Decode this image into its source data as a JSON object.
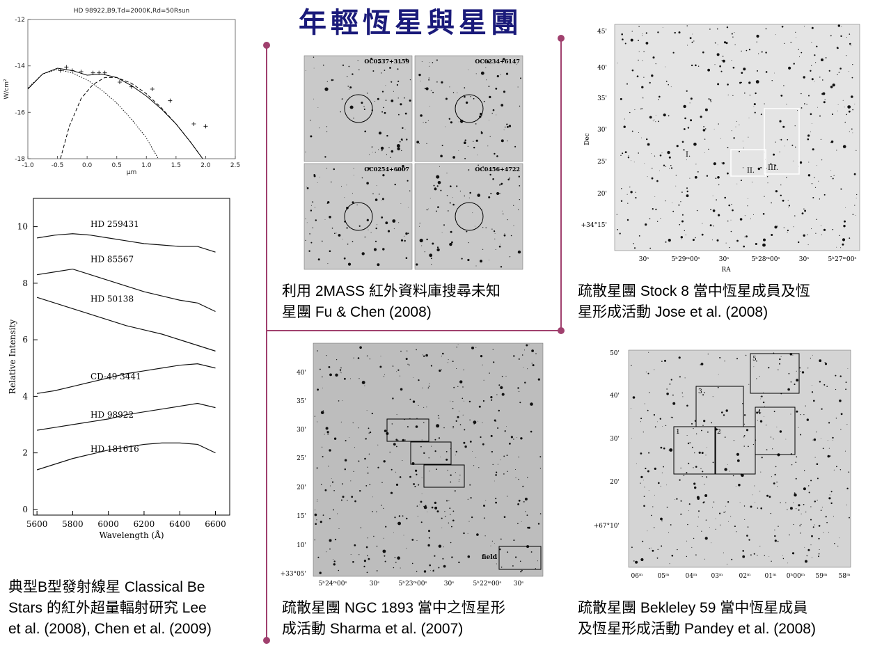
{
  "header": {
    "title": "年輕恆星與星團"
  },
  "sed": {
    "title": "HD 98922,B9,Td=2000K,Rd=50Rsun",
    "xlabel": "μm",
    "ylabel": "W/cm²",
    "xlim": [
      -1,
      2.5
    ],
    "ylim": [
      -18,
      -12
    ],
    "xticks": [
      {
        "value": -1,
        "label": "-1.0"
      },
      {
        "value": -0.5,
        "label": "-0.5"
      },
      {
        "value": 0,
        "label": "0.0"
      },
      {
        "value": 0.5,
        "label": "0.5"
      },
      {
        "value": 1,
        "label": "1.0"
      },
      {
        "value": 1.5,
        "label": "1.5"
      },
      {
        "value": 2,
        "label": "2.0"
      },
      {
        "value": 2.5,
        "label": "2.5"
      }
    ],
    "yticks": [
      -12,
      -14,
      -16,
      -18
    ],
    "points": {
      "x": [
        -0.45,
        -0.35,
        -0.25,
        -0.1,
        0.1,
        0.2,
        0.3,
        0.55,
        0.75,
        1.1,
        1.4,
        1.8,
        2.0
      ],
      "y": [
        -14.2,
        -14.05,
        -14.2,
        -14.25,
        -14.3,
        -14.3,
        -14.3,
        -14.7,
        -14.9,
        -15.0,
        -15.5,
        -16.5,
        -16.6
      ]
    },
    "curves": [
      {
        "style": "solid",
        "x": [
          -1,
          -0.75,
          -0.5,
          -0.25,
          0,
          0.25,
          0.5,
          0.75,
          1,
          1.25,
          1.5,
          1.75,
          1.95
        ],
        "y": [
          -15,
          -14.35,
          -14.1,
          -14.2,
          -14.4,
          -14.35,
          -14.5,
          -14.85,
          -15.3,
          -15.85,
          -16.5,
          -17.3,
          -18
        ]
      },
      {
        "style": "dotted",
        "x": [
          -1,
          -0.75,
          -0.5,
          -0.25,
          0,
          0.25,
          0.5,
          0.75,
          1,
          1.2
        ],
        "y": [
          -14.95,
          -14.35,
          -14.15,
          -14.3,
          -14.6,
          -15.05,
          -15.6,
          -16.3,
          -17.1,
          -18
        ]
      },
      {
        "style": "dashed",
        "x": [
          -0.45,
          -0.3,
          -0.1,
          0.1,
          0.3,
          0.5,
          0.75,
          1,
          1.25,
          1.5,
          1.75,
          1.95
        ],
        "y": [
          -18,
          -16.6,
          -15.4,
          -14.8,
          -14.5,
          -14.5,
          -14.75,
          -15.2,
          -15.8,
          -16.5,
          -17.3,
          -18
        ]
      }
    ]
  },
  "spectra": {
    "xlabel": "Wavelength (Å)",
    "ylabel": "Relative Intensity",
    "xlim": [
      5580,
      6680
    ],
    "ylim": [
      -0.2,
      11
    ],
    "xticks": [
      5600,
      5800,
      6000,
      6200,
      6400,
      6600
    ],
    "yticks": [
      0,
      2,
      4,
      6,
      8,
      10
    ],
    "x": [
      5600,
      5700,
      5800,
      5900,
      6000,
      6100,
      6200,
      6300,
      6400,
      6500,
      6600
    ],
    "series": [
      {
        "name": "HD 259431",
        "values": [
          9.6,
          9.7,
          9.75,
          9.7,
          9.6,
          9.5,
          9.4,
          9.35,
          9.3,
          9.3,
          9.1
        ]
      },
      {
        "name": "HD 85567",
        "values": [
          8.3,
          8.4,
          8.5,
          8.3,
          8.1,
          7.9,
          7.7,
          7.55,
          7.4,
          7.3,
          7.0
        ]
      },
      {
        "name": "HD 50138",
        "values": [
          7.5,
          7.3,
          7.1,
          6.9,
          6.7,
          6.5,
          6.35,
          6.2,
          6.0,
          5.8,
          5.6
        ]
      },
      {
        "name": "CD-49 3441",
        "values": [
          4.1,
          4.2,
          4.35,
          4.5,
          4.65,
          4.8,
          4.9,
          5.0,
          5.1,
          5.15,
          5.0
        ]
      },
      {
        "name": "HD 98922",
        "values": [
          2.8,
          2.9,
          3.0,
          3.1,
          3.2,
          3.35,
          3.45,
          3.55,
          3.65,
          3.75,
          3.6
        ]
      },
      {
        "name": "HD 181616",
        "values": [
          1.4,
          1.6,
          1.8,
          1.95,
          2.1,
          2.2,
          2.3,
          2.35,
          2.35,
          2.3,
          2.0
        ]
      }
    ]
  },
  "be_caption": {
    "lines": [
      "典型B型發射線星 Classical Be",
      "Stars 的紅外超量輻射研究 Lee",
      "et al. (2008), Chen et al. (2009)"
    ]
  },
  "oc_search": {
    "labels": [
      "OC0537+3159",
      "OC0234+6147",
      "OC0254+6007",
      "OC0456+4722"
    ],
    "caption": [
      "利用 2MASS 紅外資料庫搜尋未知",
      "星團 Fu & Chen (2008)"
    ]
  },
  "stock8": {
    "ylabel": "Dec",
    "xlabel": "RA",
    "yticks": [
      "45'",
      "40'",
      "35'",
      "30'",
      "25'",
      "20'",
      "+34°15'"
    ],
    "xticks": [
      "30ˢ",
      "5ʰ29ᵐ00ˢ",
      "30ˢ",
      "5ʰ28ᵐ00ˢ",
      "30ˢ",
      "5ʰ27ᵐ00ˢ"
    ],
    "regions": [
      "I.",
      "II.",
      "III."
    ],
    "caption": [
      "疏散星團 Stock 8 當中恆星成員及恆",
      "星形成活動 Jose et al. (2008)"
    ]
  },
  "ngc1893": {
    "yticks": [
      "40'",
      "35'",
      "30'",
      "25'",
      "20'",
      "15'",
      "10'",
      "+33°05'"
    ],
    "xticks": [
      "5ʰ24ᵐ00ˢ",
      "30ˢ",
      "5ʰ23ᵐ00ˢ",
      "30ˢ",
      "5ʰ22ᵐ00ˢ",
      "30ˢ"
    ],
    "field": "field",
    "caption": [
      "疏散星團 NGC 1893 當中之恆星形",
      "成活動 Sharma et al. (2007)"
    ]
  },
  "be59": {
    "yticks": [
      "50'",
      "40'",
      "30'",
      "20'",
      "+67°10'"
    ],
    "xticks": [
      "06ᵐ",
      "05ᵐ",
      "04ᵐ",
      "03ᵐ",
      "02ᵐ",
      "01ᵐ",
      "0ʰ00ᵐ",
      "59ᵐ",
      "58ᵐ"
    ],
    "regions": [
      "1",
      "2",
      "3",
      "4",
      "5"
    ],
    "caption": [
      "疏散星團 Bekleley 59 當中恆星成員",
      "及恆星形成活動 Pandey et al. (2008)"
    ]
  }
}
